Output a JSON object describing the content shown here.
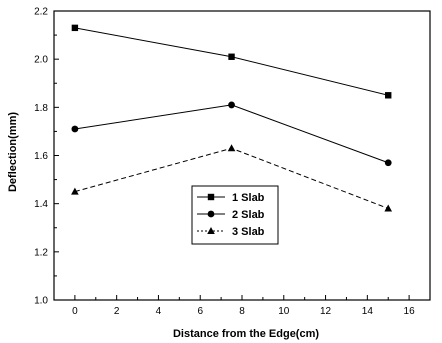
{
  "chart_data": {
    "type": "line",
    "title": "",
    "xlabel": "Distance from the Edge(cm)",
    "ylabel": "Deflection(mm)",
    "xlim": [
      -1,
      17
    ],
    "ylim": [
      1.0,
      2.2
    ],
    "xticks": [
      0,
      2,
      4,
      6,
      8,
      10,
      12,
      14,
      16
    ],
    "yticks": [
      1.0,
      1.2,
      1.4,
      1.6,
      1.8,
      2.0,
      2.2
    ],
    "ytick_labels": [
      "1.0",
      "1.2",
      "1.4",
      "1.6",
      "1.8",
      "2.0",
      "2.2"
    ],
    "grid": false,
    "legend_position": "center",
    "x": [
      0,
      7.5,
      15
    ],
    "series": [
      {
        "name": "1 Slab",
        "values": [
          2.13,
          2.01,
          1.85
        ],
        "marker": "square",
        "line_style": "solid"
      },
      {
        "name": "2 Slab",
        "values": [
          1.71,
          1.81,
          1.57
        ],
        "marker": "circle",
        "line_style": "solid"
      },
      {
        "name": "3 Slab",
        "values": [
          1.45,
          1.63,
          1.38
        ],
        "marker": "triangle",
        "line_style": "dashed"
      }
    ],
    "colors": {
      "line": "#000000",
      "background": "#ffffff"
    }
  }
}
